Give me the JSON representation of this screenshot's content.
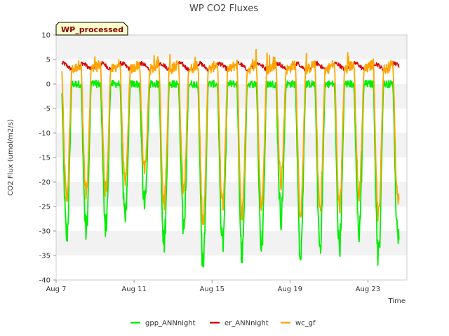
{
  "chart_data": {
    "type": "line",
    "title": "WP CO2 Fluxes",
    "badge": "WP_processed",
    "xlabel": "Time",
    "ylabel": "CO2 Flux (umol/m2/s)",
    "ylim": [
      -40,
      10
    ],
    "xlim": [
      7,
      25
    ],
    "yticks": [
      10,
      5,
      0,
      -5,
      -10,
      -15,
      -20,
      -25,
      -30,
      -35,
      -40
    ],
    "xticks": [
      {
        "value": 7,
        "label": "Aug 7"
      },
      {
        "value": 11,
        "label": "Aug 11"
      },
      {
        "value": 15,
        "label": "Aug 15"
      },
      {
        "value": 19,
        "label": "Aug 19"
      },
      {
        "value": 23,
        "label": "Aug 23"
      }
    ],
    "grid": "horizontal bands",
    "legend_position": "bottom",
    "x_start": 7.3,
    "x_end": 24.6,
    "daily_midday_minimum_gpp": [
      -31,
      -30,
      -29,
      -28,
      -25,
      -32,
      -29,
      -37,
      -33,
      -35,
      -33,
      -27,
      -34,
      -33,
      -33,
      -30,
      -35,
      -32
    ],
    "series": [
      {
        "name": "gpp_ANNnight",
        "color": "#00ee00",
        "description": "Gross primary production, ~0 at night, strongly negative at midday"
      },
      {
        "name": "er_ANNnight",
        "color": "#dd0000",
        "description": "Ecosystem respiration, roughly 3 to 5 throughout"
      },
      {
        "name": "wc_gf",
        "color": "#ffa500",
        "description": "Gap-filled net CO2 flux, ~3 to 5 at night, negative at midday"
      }
    ]
  }
}
